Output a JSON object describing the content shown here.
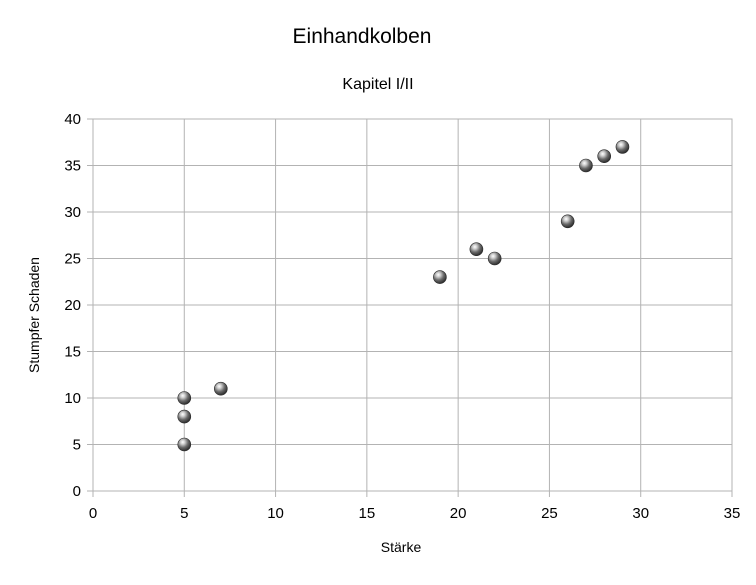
{
  "chart_data": {
    "type": "scatter",
    "title": "Einhandkolben",
    "subtitle": "Kapitel I/II",
    "xlabel": "Stärke",
    "ylabel": "Stumpfer Schaden",
    "xlim": [
      0,
      35
    ],
    "ylim": [
      0,
      40
    ],
    "xticks": [
      0,
      5,
      10,
      15,
      20,
      25,
      30,
      35
    ],
    "yticks": [
      0,
      5,
      10,
      15,
      20,
      25,
      30,
      35,
      40
    ],
    "grid": true,
    "legend": "none",
    "marker_color": "#555555",
    "grid_color": "#b3b3b3",
    "series": [
      {
        "points": [
          {
            "x": 5,
            "y": 5
          },
          {
            "x": 5,
            "y": 8
          },
          {
            "x": 5,
            "y": 10
          },
          {
            "x": 7,
            "y": 11
          },
          {
            "x": 19,
            "y": 23
          },
          {
            "x": 21,
            "y": 26
          },
          {
            "x": 22,
            "y": 25
          },
          {
            "x": 26,
            "y": 29
          },
          {
            "x": 27,
            "y": 35
          },
          {
            "x": 28,
            "y": 36
          },
          {
            "x": 29,
            "y": 37
          }
        ]
      }
    ]
  }
}
